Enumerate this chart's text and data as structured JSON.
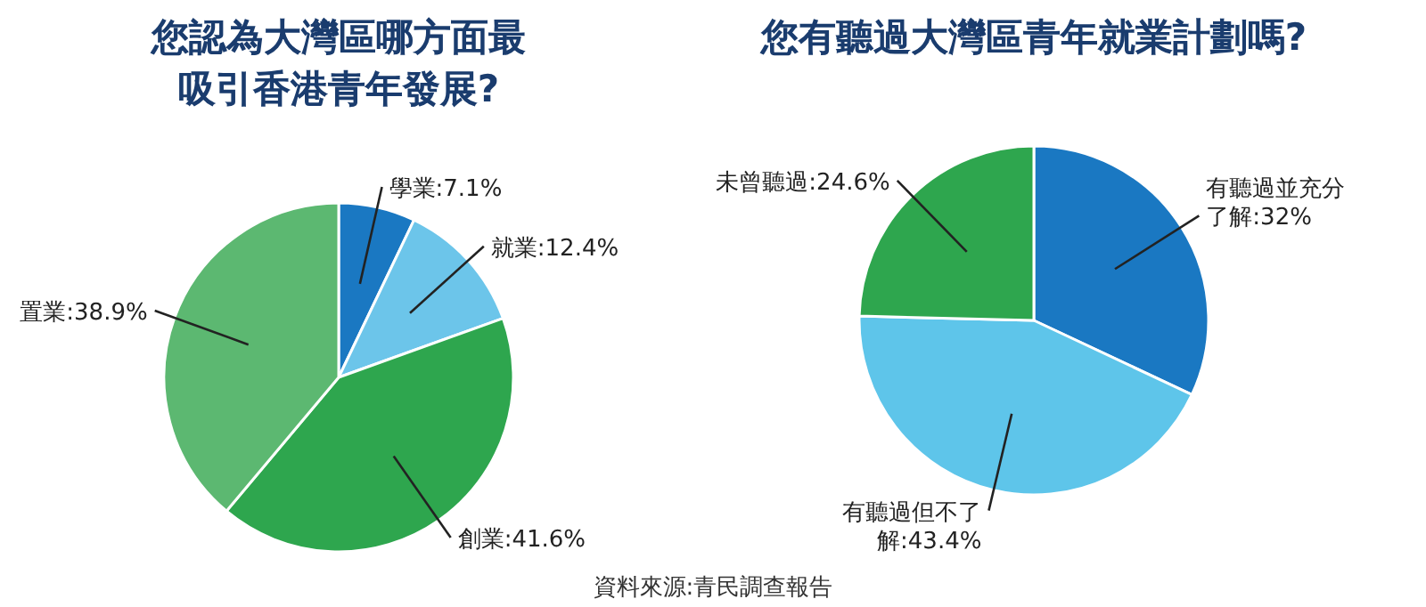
{
  "chart_data": [
    {
      "type": "pie",
      "title": "您認為大灣區哪方面最吸引香港青年發展?",
      "categories": [
        "學業",
        "就業",
        "創業",
        "置業"
      ],
      "values": [
        7.1,
        12.4,
        41.6,
        38.9
      ],
      "value_labels": [
        "7.1%",
        "12.4%",
        "41.6%",
        "38.9%"
      ],
      "colors": [
        "#1a78c2",
        "#6cc5ea",
        "#2ea64e",
        "#5cb871"
      ]
    },
    {
      "type": "pie",
      "title": "您有聽過大灣區青年就業計劃嗎?",
      "categories": [
        "有聽過並充分了解",
        "有聽過但不了解",
        "未曾聽過"
      ],
      "values": [
        32,
        43.4,
        24.6
      ],
      "value_labels": [
        "32%",
        "43.4%",
        "24.6%"
      ],
      "colors": [
        "#1a78c2",
        "#5ec5ea",
        "#2ea64e"
      ],
      "annotations": [
        "資料來源:青民調查報告"
      ]
    }
  ]
}
